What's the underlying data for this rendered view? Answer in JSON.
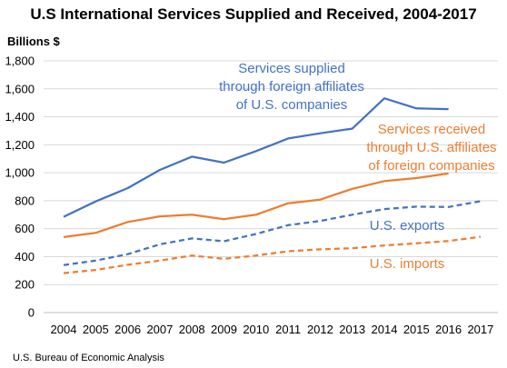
{
  "chart_data": {
    "type": "line",
    "title": "U.S International Services Supplied and Received, 2004-2017",
    "ylabel": "Billions $",
    "source": "U.S. Bureau of Economic Analysis",
    "ylim": [
      0,
      1800
    ],
    "yticks": [
      "0",
      "200",
      "400",
      "600",
      "800",
      "1,000",
      "1,200",
      "1,400",
      "1,600",
      "1,800"
    ],
    "ytick_values": [
      0,
      200,
      400,
      600,
      800,
      1000,
      1200,
      1400,
      1600,
      1800
    ],
    "categories": [
      "2004",
      "2005",
      "2006",
      "2007",
      "2008",
      "2009",
      "2010",
      "2011",
      "2012",
      "2013",
      "2014",
      "2015",
      "2016",
      "2017"
    ],
    "grid": true,
    "series": [
      {
        "key": "supplied",
        "label_lines": [
          "Services supplied",
          "through foreign affiliates",
          "of U.S. companies"
        ],
        "color": "#4472C4",
        "dashed": false,
        "values": [
          685,
          795,
          890,
          1020,
          1115,
          1072,
          1155,
          1245,
          1282,
          1315,
          1532,
          1460,
          1455,
          null
        ]
      },
      {
        "key": "received",
        "label_lines": [
          "Services received",
          "through U.S. affiliates",
          "of foreign companies"
        ],
        "color": "#ED7D31",
        "dashed": false,
        "values": [
          540,
          570,
          648,
          688,
          700,
          668,
          700,
          782,
          808,
          885,
          940,
          962,
          995,
          null
        ]
      },
      {
        "key": "exports",
        "label_lines": [
          "U.S. exports"
        ],
        "color": "#4472C4",
        "dashed": true,
        "values": [
          340,
          372,
          418,
          488,
          530,
          510,
          562,
          625,
          655,
          700,
          740,
          758,
          755,
          797
        ]
      },
      {
        "key": "imports",
        "label_lines": [
          "U.S. imports"
        ],
        "color": "#ED7D31",
        "dashed": true,
        "values": [
          282,
          305,
          342,
          372,
          408,
          385,
          408,
          438,
          452,
          460,
          480,
          495,
          512,
          542
        ]
      }
    ]
  }
}
